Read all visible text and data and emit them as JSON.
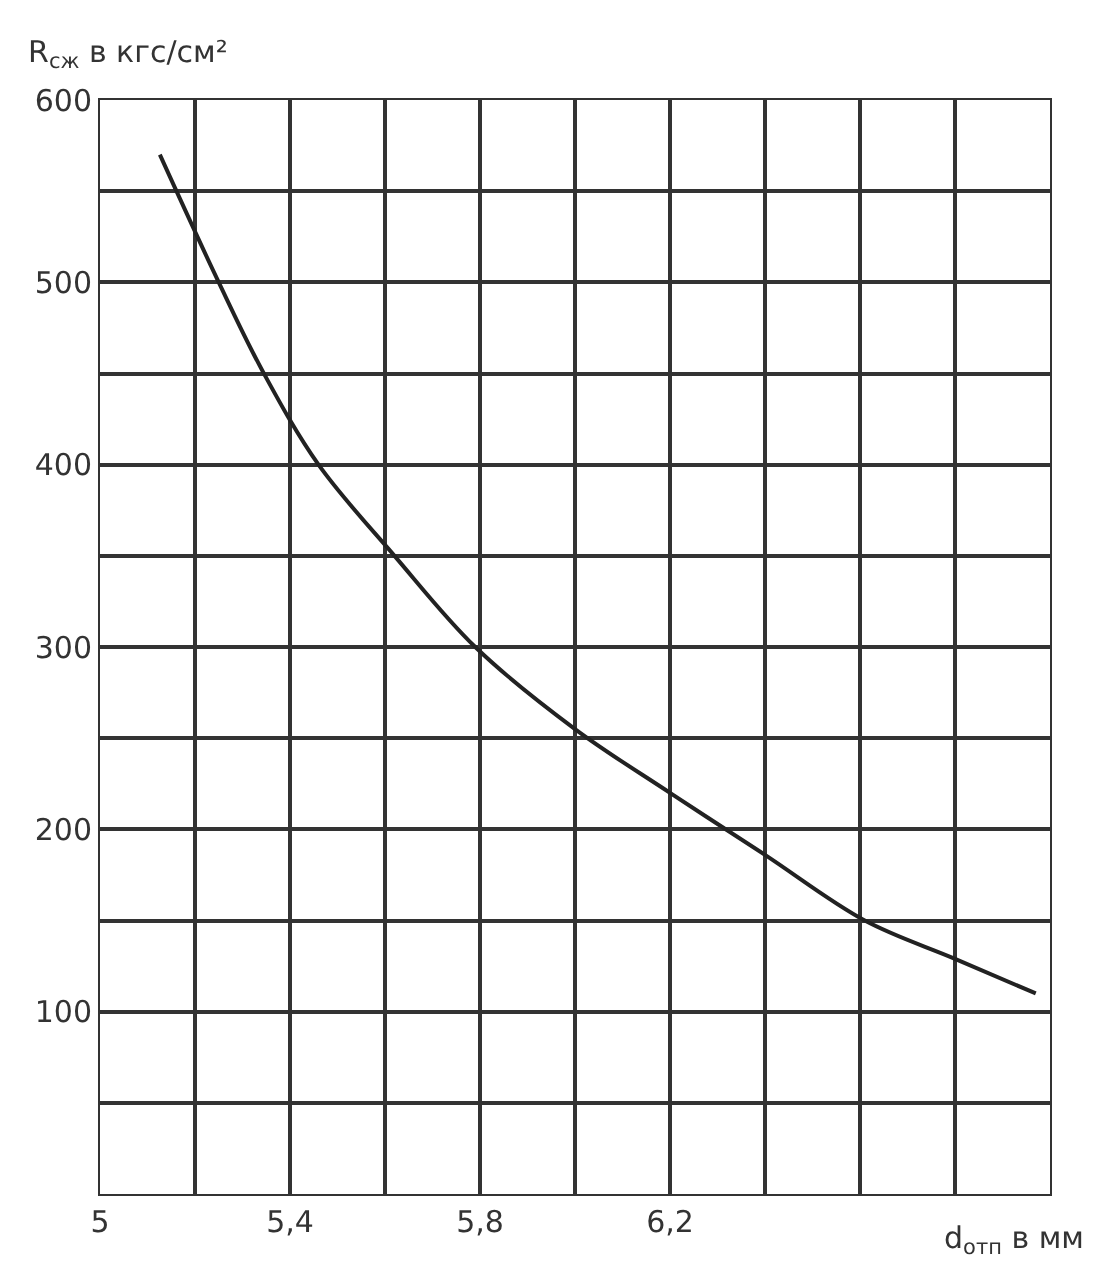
{
  "chart_data": {
    "type": "line",
    "ylabel": "R$_{сж}$ в кгс/см²",
    "xlabel": "d$_{отп}$ в мм",
    "x": [
      5.126,
      5.25,
      5.345,
      5.46,
      5.62,
      5.79,
      6.0,
      6.2,
      6.4,
      6.61,
      6.8,
      6.97
    ],
    "series": [
      {
        "color": "#222222",
        "values": [
          570,
          500,
          450,
          400,
          350,
          300,
          255,
          220,
          186,
          150,
          129,
          110
        ]
      }
    ],
    "xlim": [
      5,
      7
    ],
    "xticks": [
      5,
      {
        "value": 5.2,
        "label": null
      },
      {
        "value": 5.4,
        "label": "5,4"
      },
      {
        "value": 5.6,
        "label": null
      },
      {
        "value": 5.8,
        "label": "5,8"
      },
      {
        "value": 6.0,
        "label": null
      },
      {
        "value": 6.2,
        "label": "6,2"
      },
      {
        "value": 6.4,
        "label": null
      },
      {
        "value": 6.6,
        "label": null
      },
      {
        "value": 6.8,
        "label": null
      },
      {
        "value": 7,
        "label": null
      }
    ],
    "ylim": [
      0,
      600
    ],
    "yticks": [
      {
        "value": 0,
        "label": null
      },
      {
        "value": 50,
        "label": null
      },
      100,
      {
        "value": 150,
        "label": null
      },
      200,
      {
        "value": 250,
        "label": null
      },
      300,
      {
        "value": 350,
        "label": null
      },
      400,
      {
        "value": 450,
        "label": null
      },
      500,
      {
        "value": 550,
        "label": null
      },
      600
    ],
    "grid": true,
    "legend": false,
    "line_style": "solid",
    "marker": "none"
  }
}
